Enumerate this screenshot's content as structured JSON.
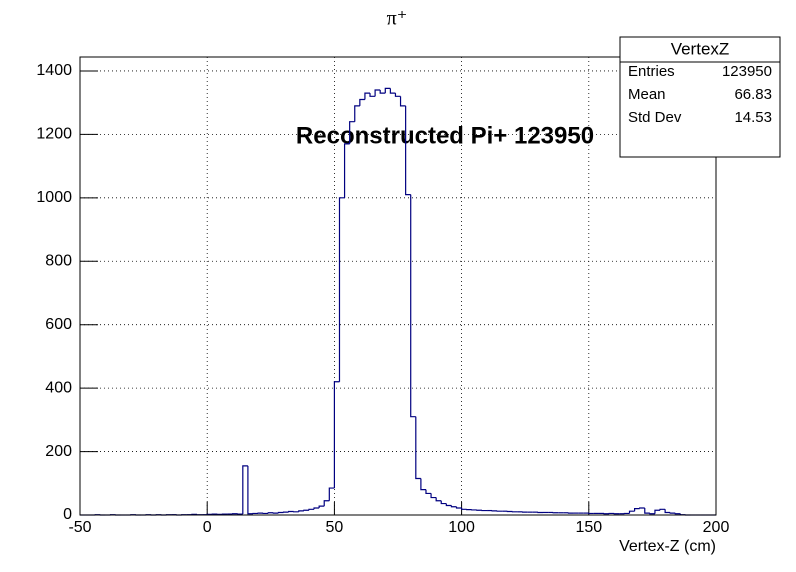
{
  "chart_data": {
    "type": "histogram",
    "title": "π⁺",
    "annotation": "Reconstructed Pi+ 123950",
    "xlabel": "Vertex-Z (cm)",
    "color": "#000080",
    "grid": true,
    "bins": [
      -50,
      -48,
      -46,
      -44,
      -42,
      -40,
      -38,
      -36,
      -34,
      -32,
      -30,
      -28,
      -26,
      -24,
      -22,
      -20,
      -18,
      -16,
      -14,
      -12,
      -10,
      -8,
      -6,
      -4,
      -2,
      0,
      2,
      4,
      6,
      8,
      10,
      12,
      14,
      16,
      18,
      20,
      22,
      24,
      26,
      28,
      30,
      32,
      34,
      36,
      38,
      40,
      42,
      44,
      46,
      48,
      50,
      52,
      54,
      56,
      58,
      60,
      62,
      64,
      66,
      68,
      70,
      72,
      74,
      76,
      78,
      80,
      82,
      84,
      86,
      88,
      90,
      92,
      94,
      96,
      98,
      100,
      102,
      104,
      106,
      108,
      110,
      112,
      114,
      116,
      118,
      120,
      122,
      124,
      126,
      128,
      130,
      132,
      134,
      136,
      138,
      140,
      142,
      144,
      146,
      148,
      150,
      152,
      154,
      156,
      158,
      160,
      162,
      164,
      166,
      168,
      170,
      172,
      174,
      176,
      178,
      180,
      182,
      184,
      186,
      188,
      190,
      192,
      194,
      196,
      198,
      200
    ],
    "values": [
      0,
      0,
      0,
      1,
      0,
      0,
      1,
      0,
      0,
      0,
      1,
      0,
      0,
      1,
      0,
      1,
      0,
      1,
      1,
      0,
      1,
      1,
      2,
      1,
      1,
      2,
      3,
      2,
      3,
      3,
      4,
      3,
      155,
      4,
      5,
      6,
      5,
      7,
      6,
      8,
      9,
      11,
      10,
      13,
      15,
      18,
      22,
      28,
      45,
      85,
      420,
      1000,
      1170,
      1240,
      1290,
      1310,
      1330,
      1320,
      1340,
      1330,
      1345,
      1330,
      1320,
      1290,
      1010,
      310,
      115,
      80,
      68,
      55,
      45,
      36,
      30,
      26,
      22,
      18,
      17,
      16,
      15,
      14,
      14,
      13,
      12,
      12,
      11,
      10,
      10,
      9,
      9,
      9,
      8,
      8,
      8,
      7,
      7,
      7,
      6,
      6,
      6,
      6,
      5,
      5,
      5,
      4,
      5,
      4,
      4,
      5,
      12,
      20,
      22,
      6,
      4,
      15,
      18,
      8,
      6,
      4,
      1,
      0,
      0,
      0,
      0,
      0,
      0
    ],
    "xlim": [
      -50,
      200
    ],
    "xticks": [
      -50,
      0,
      50,
      100,
      150,
      200
    ],
    "ylim": [
      0,
      1444
    ],
    "yticks": [
      0,
      200,
      400,
      600,
      800,
      1000,
      1200,
      1400
    ],
    "stats": {
      "title": "VertexZ",
      "rows": [
        [
          "Entries",
          "123950"
        ],
        [
          "Mean",
          "66.83"
        ],
        [
          "Std Dev",
          "14.53"
        ]
      ]
    }
  }
}
